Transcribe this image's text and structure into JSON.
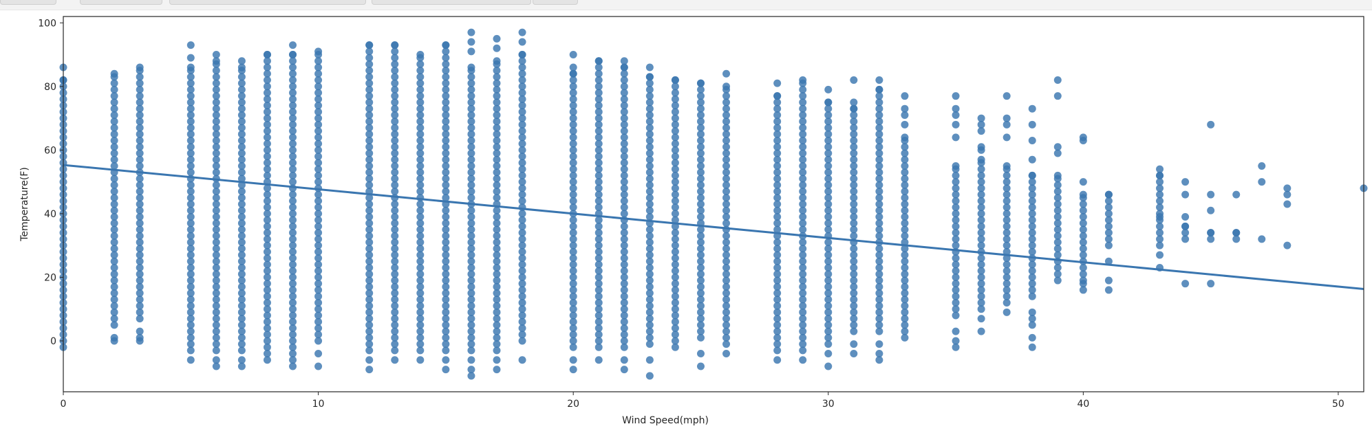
{
  "chart_data": {
    "type": "scatter",
    "title": "",
    "xlabel": "Wind Speed(mph)",
    "ylabel": "Temperature(F)",
    "xlim": [
      0,
      51
    ],
    "ylim": [
      -16,
      102
    ],
    "xticks": [
      0,
      10,
      20,
      30,
      40,
      50
    ],
    "yticks": [
      0,
      20,
      40,
      60,
      80,
      100
    ],
    "grid": false,
    "point_color": "#3a76b0",
    "line_color": "#3a76b0",
    "regression_line": {
      "x": [
        0,
        51
      ],
      "y": [
        55.3,
        16.3
      ]
    },
    "columns": [
      {
        "x": 0,
        "ymin": 0,
        "ymax": 82,
        "extras": [
          -2,
          86
        ]
      },
      {
        "x": 2,
        "ymin": 5,
        "ymax": 84,
        "extras": [
          0,
          1
        ]
      },
      {
        "x": 3,
        "ymin": 7,
        "ymax": 86,
        "extras": [
          0,
          1,
          3
        ]
      },
      {
        "x": 5,
        "ymin": -3,
        "ymax": 86,
        "extras": [
          -6,
          89,
          93
        ]
      },
      {
        "x": 6,
        "ymin": -3,
        "ymax": 88,
        "extras": [
          -6,
          -8,
          90
        ]
      },
      {
        "x": 7,
        "ymin": -3,
        "ymax": 86,
        "extras": [
          -6,
          -8,
          88
        ]
      },
      {
        "x": 8,
        "ymin": -2,
        "ymax": 90,
        "extras": [
          -4,
          -6
        ]
      },
      {
        "x": 9,
        "ymin": -2,
        "ymax": 90,
        "extras": [
          -4,
          -6,
          -8,
          93
        ]
      },
      {
        "x": 10,
        "ymin": 0,
        "ymax": 91,
        "extras": [
          -4,
          -8
        ]
      },
      {
        "x": 12,
        "ymin": -3,
        "ymax": 93,
        "extras": [
          -6,
          -9
        ]
      },
      {
        "x": 13,
        "ymin": -3,
        "ymax": 93,
        "extras": [
          -6
        ]
      },
      {
        "x": 14,
        "ymin": -3,
        "ymax": 90,
        "extras": [
          -6
        ]
      },
      {
        "x": 15,
        "ymin": -3,
        "ymax": 93,
        "extras": [
          -6,
          -9
        ]
      },
      {
        "x": 16,
        "ymin": -3,
        "ymax": 86,
        "extras": [
          -6,
          -9,
          -11,
          91,
          94,
          97
        ]
      },
      {
        "x": 17,
        "ymin": -3,
        "ymax": 88,
        "extras": [
          -6,
          -9,
          92,
          95
        ]
      },
      {
        "x": 18,
        "ymin": 0,
        "ymax": 90,
        "extras": [
          -6,
          94,
          97
        ]
      },
      {
        "x": 20,
        "ymin": -2,
        "ymax": 84,
        "extras": [
          -6,
          -9,
          86,
          90
        ]
      },
      {
        "x": 21,
        "ymin": -2,
        "ymax": 88,
        "extras": [
          -6
        ]
      },
      {
        "x": 22,
        "ymin": -2,
        "ymax": 86,
        "extras": [
          -6,
          -9,
          88
        ]
      },
      {
        "x": 23,
        "ymin": -1,
        "ymax": 83,
        "extras": [
          -6,
          -11,
          86
        ]
      },
      {
        "x": 24,
        "ymin": -2,
        "ymax": 82,
        "extras": []
      },
      {
        "x": 25,
        "ymin": 1,
        "ymax": 81,
        "extras": [
          -4,
          -8
        ]
      },
      {
        "x": 26,
        "ymin": -1,
        "ymax": 80,
        "extras": [
          -4,
          84
        ]
      },
      {
        "x": 28,
        "ymin": -3,
        "ymax": 77,
        "extras": [
          -6,
          81
        ]
      },
      {
        "x": 29,
        "ymin": -3,
        "ymax": 82,
        "extras": [
          -6
        ]
      },
      {
        "x": 30,
        "ymin": -1,
        "ymax": 75,
        "extras": [
          -4,
          -8,
          79
        ]
      },
      {
        "x": 31,
        "ymin": 3,
        "ymax": 73,
        "extras": [
          -1,
          -4,
          75,
          82
        ]
      },
      {
        "x": 32,
        "ymin": 3,
        "ymax": 79,
        "extras": [
          -1,
          -4,
          -6,
          82
        ]
      },
      {
        "x": 33,
        "ymin": 1,
        "ymax": 64,
        "extras": [
          68,
          71,
          73,
          77
        ]
      },
      {
        "x": 35,
        "ymin": 8,
        "ymax": 55,
        "extras": [
          -2,
          0,
          3,
          64,
          68,
          71,
          73,
          77
        ]
      },
      {
        "x": 36,
        "ymin": 10,
        "ymax": 57,
        "extras": [
          3,
          7,
          60,
          61,
          66,
          68,
          70
        ]
      },
      {
        "x": 37,
        "ymin": 12,
        "ymax": 55,
        "extras": [
          9,
          64,
          68,
          70,
          77
        ]
      },
      {
        "x": 38,
        "ymin": 14,
        "ymax": 52,
        "extras": [
          -2,
          1,
          5,
          7,
          9,
          57,
          63,
          68,
          73
        ]
      },
      {
        "x": 39,
        "ymin": 19,
        "ymax": 52,
        "extras": [
          59,
          61,
          77,
          82
        ]
      },
      {
        "x": 40,
        "ymin": 21,
        "ymax": 46,
        "extras": [
          16,
          18,
          19,
          50,
          63,
          64
        ]
      },
      {
        "x": 41,
        "ymin": 30,
        "ymax": 46,
        "extras": [
          16,
          19,
          25
        ]
      },
      {
        "x": 43,
        "ymin": 30,
        "ymax": 52,
        "extras": [
          23,
          27,
          39,
          54
        ]
      },
      {
        "x": 44,
        "ymin": 32,
        "ymax": 36,
        "extras": [
          18,
          39,
          46,
          50
        ]
      },
      {
        "x": 45,
        "ymin": 32,
        "ymax": 34,
        "extras": [
          18,
          41,
          46,
          68
        ]
      },
      {
        "x": 46,
        "ymin": 32,
        "ymax": 34,
        "extras": [
          46
        ]
      },
      {
        "x": 47,
        "ymin": 32,
        "ymax": 32,
        "extras": [
          50,
          55
        ]
      },
      {
        "x": 48,
        "ymin": 30,
        "ymax": 30,
        "extras": [
          43,
          46,
          48
        ]
      },
      {
        "x": 51,
        "ymin": 48,
        "ymax": 48,
        "extras": []
      }
    ]
  }
}
